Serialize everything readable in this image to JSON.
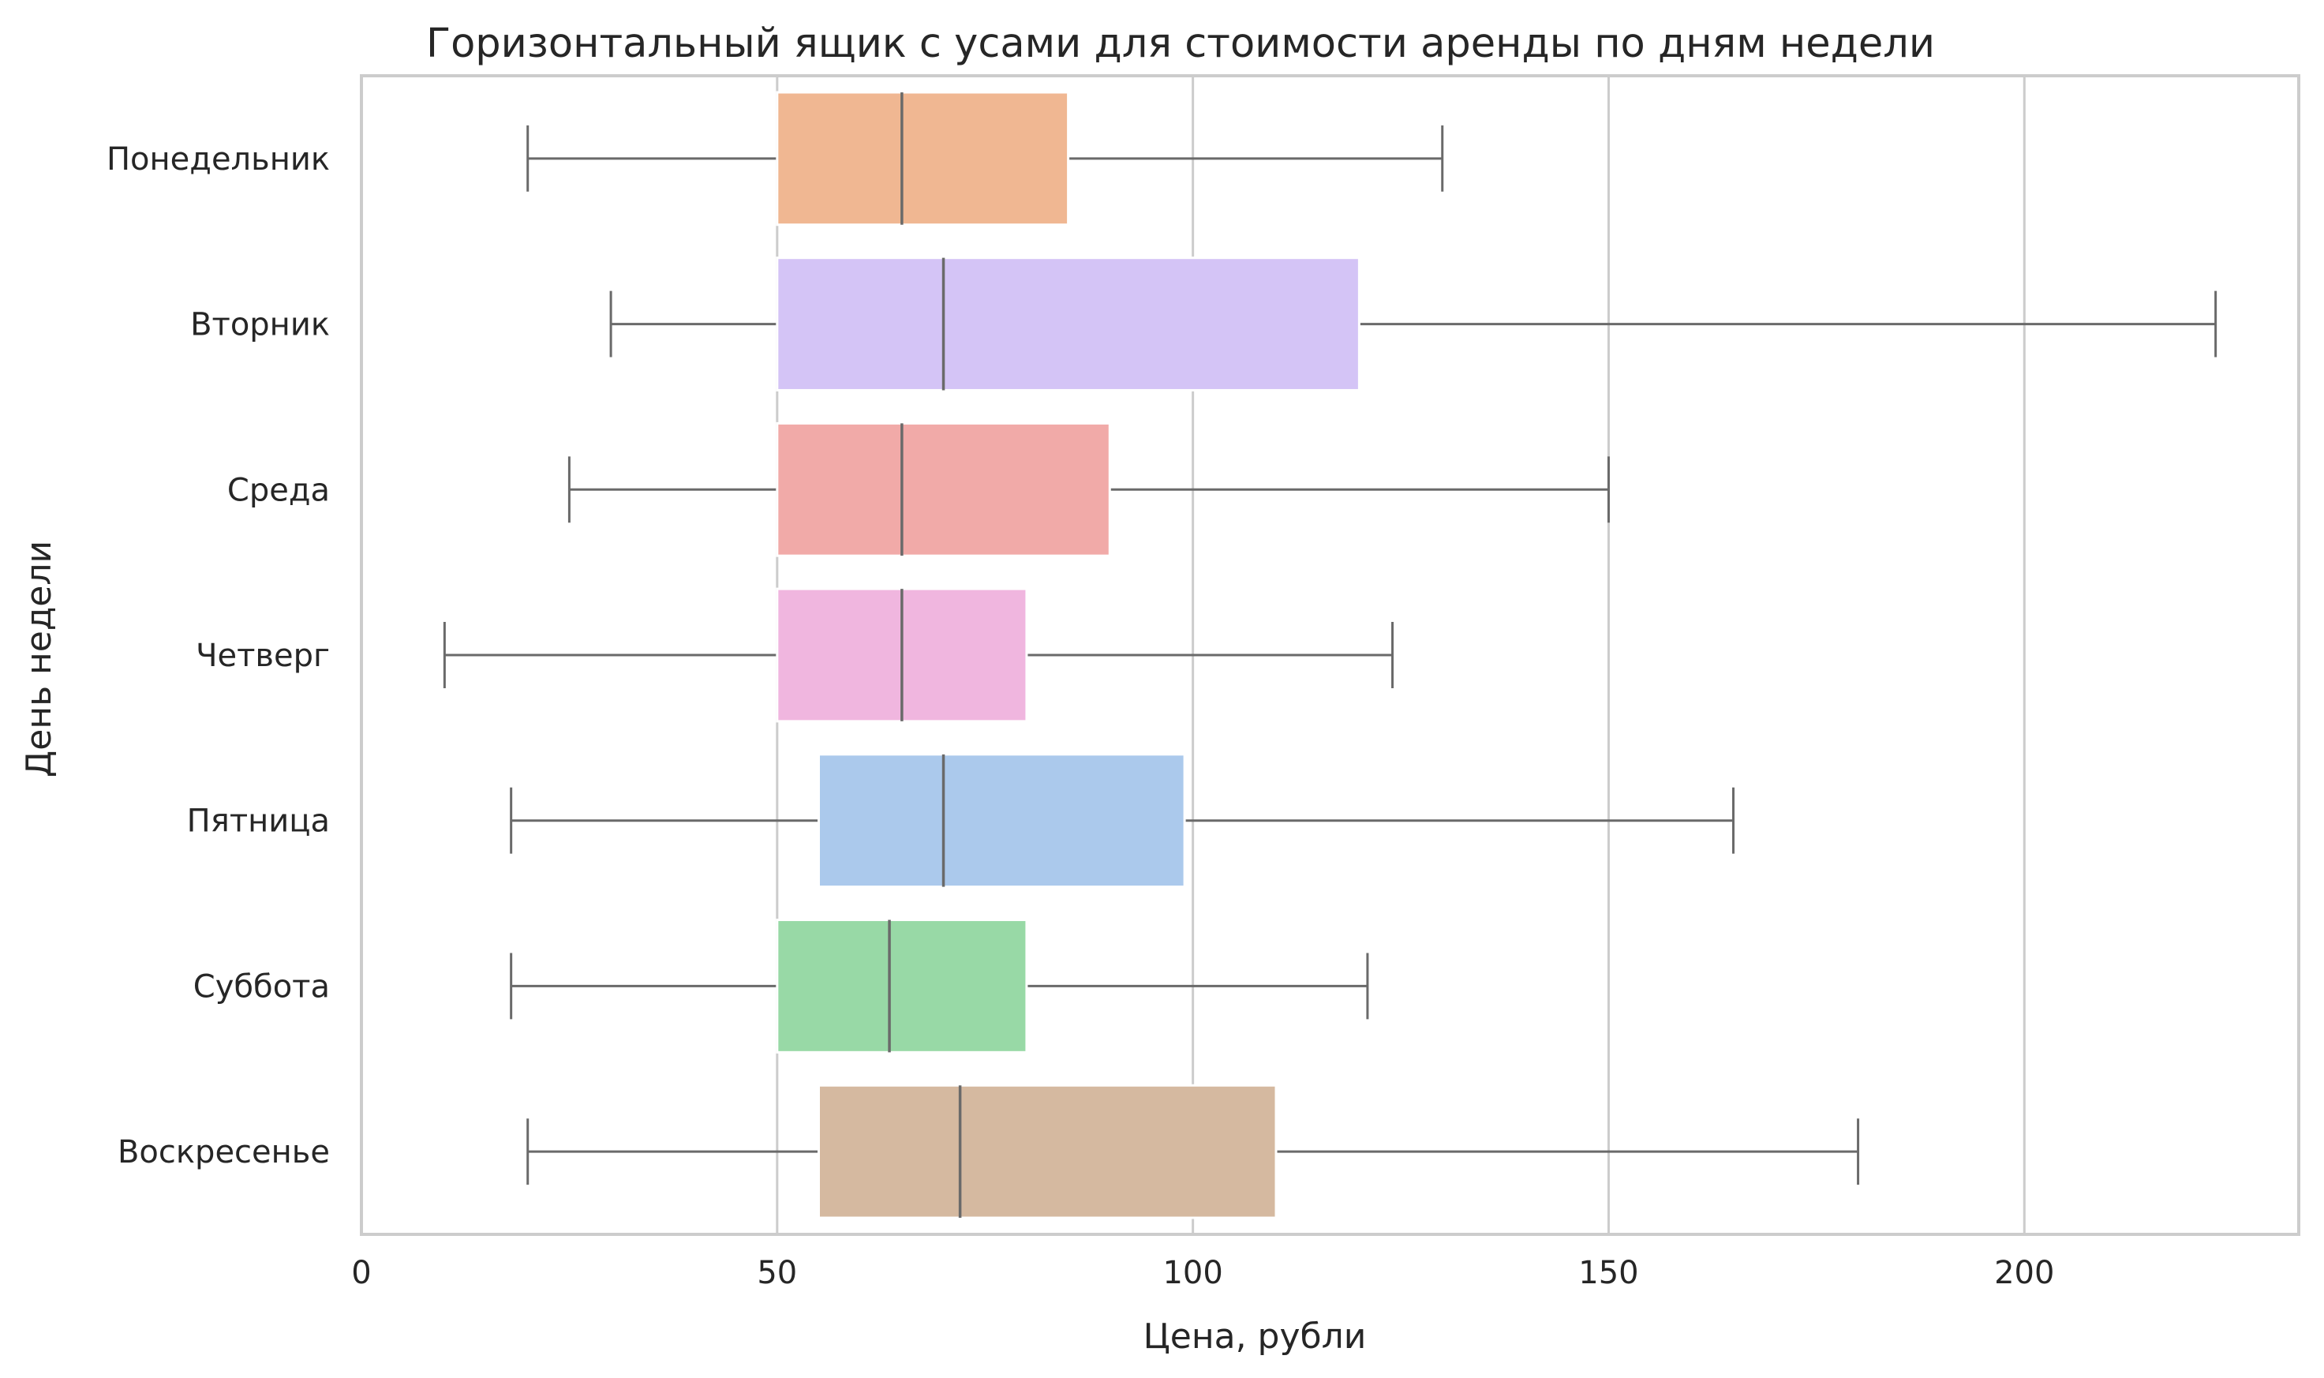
{
  "chart_data": {
    "type": "boxplot",
    "orientation": "horizontal",
    "title": "Горизонтальный ящик с усами для стоимости аренды по дням недели",
    "xlabel": "Цена, рубли",
    "ylabel": "День недели",
    "xlim": [
      0,
      233
    ],
    "xticks": [
      0,
      50,
      100,
      150,
      200
    ],
    "grid": "x-major",
    "categories": [
      "Понедельник",
      "Вторник",
      "Среда",
      "Четверг",
      "Пятница",
      "Суббота",
      "Воскресенье"
    ],
    "boxes": [
      {
        "category": "Понедельник",
        "whisker_low": 20,
        "q1": 50,
        "median": 65,
        "q3": 85,
        "whisker_high": 130,
        "color": "#f0b792"
      },
      {
        "category": "Вторник",
        "whisker_low": 30,
        "q1": 50,
        "median": 70,
        "q3": 120,
        "whisker_high": 223,
        "color": "#d4c4f6"
      },
      {
        "category": "Среда",
        "whisker_low": 25,
        "q1": 50,
        "median": 65,
        "q3": 90,
        "whisker_high": 150,
        "color": "#f1aaa8"
      },
      {
        "category": "Четверг",
        "whisker_low": 10,
        "q1": 50,
        "median": 65,
        "q3": 80,
        "whisker_high": 124,
        "color": "#f0b6df"
      },
      {
        "category": "Пятница",
        "whisker_low": 18,
        "q1": 55,
        "median": 70,
        "q3": 99,
        "whisker_high": 165,
        "color": "#abc9ec"
      },
      {
        "category": "Суббота",
        "whisker_low": 18,
        "q1": 50,
        "median": 63.5,
        "q3": 80,
        "whisker_high": 121,
        "color": "#98d9a6"
      },
      {
        "category": "Воскресенье",
        "whisker_low": 20,
        "q1": 55,
        "median": 72,
        "q3": 110,
        "whisker_high": 180,
        "color": "#d5b9a0"
      }
    ]
  }
}
